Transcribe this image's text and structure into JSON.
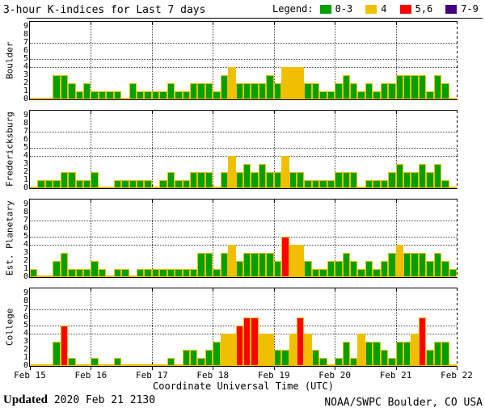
{
  "title": "3-hour K-indices for Last 7 days",
  "legend": {
    "label": "Legend:",
    "items": [
      {
        "label": "0-3",
        "color": "#00A000"
      },
      {
        "label": "4",
        "color": "#F0C000"
      },
      {
        "label": "5,6",
        "color": "#FF0000"
      },
      {
        "label": "7-9",
        "color": "#400080"
      }
    ]
  },
  "xlabel": "Coordinate Universal Time (UTC)",
  "footer": {
    "updated_label": "Updated",
    "updated_value": " 2020 Feb 21 2130",
    "source": "NOAA/SWPC Boulder, CO USA"
  },
  "chart_data": {
    "type": "bar",
    "title": "3-hour K-indices for Last 7 days",
    "ylim": [
      0,
      9
    ],
    "y_ticks": [
      0,
      1,
      2,
      3,
      4,
      5,
      6,
      7,
      8,
      9
    ],
    "hgridlines_at": [
      4,
      5,
      7
    ],
    "bars_per_day": 8,
    "days": 7,
    "x_tick_labels": [
      "Feb 15",
      "Feb 16",
      "Feb 17",
      "Feb 18",
      "Feb 19",
      "Feb 20",
      "Feb 21",
      "Feb 22"
    ],
    "color_rules": {
      "green_max": 3,
      "yellow_max": 4,
      "red_max": 6,
      "purple_max": 9
    },
    "colors": {
      "green": "#00A000",
      "yellow": "#F0C000",
      "red": "#FF0000",
      "purple": "#400080",
      "outline": "#F0C000"
    },
    "panels": [
      {
        "station": "Boulder",
        "values": [
          0,
          0,
          0,
          3,
          3,
          2,
          1,
          2,
          1,
          1,
          1,
          1,
          0,
          2,
          1,
          1,
          1,
          1,
          2,
          1,
          1,
          2,
          2,
          2,
          1,
          3,
          4,
          2,
          2,
          2,
          2,
          3,
          2,
          4,
          4,
          4,
          2,
          2,
          1,
          1,
          2,
          3,
          2,
          1,
          2,
          1,
          2,
          2,
          3,
          3,
          3,
          3,
          1,
          3,
          2,
          0
        ]
      },
      {
        "station": "Fredericksburg",
        "values": [
          0,
          1,
          1,
          1,
          2,
          2,
          1,
          1,
          2,
          0,
          0,
          1,
          1,
          1,
          1,
          1,
          0,
          1,
          2,
          1,
          1,
          2,
          2,
          2,
          0,
          2,
          4,
          2,
          3,
          2,
          3,
          2,
          2,
          4,
          2,
          2,
          1,
          1,
          1,
          1,
          2,
          2,
          2,
          0,
          1,
          1,
          1,
          2,
          3,
          2,
          2,
          3,
          2,
          3,
          1,
          0
        ]
      },
      {
        "station": "Est. Planetary",
        "values": [
          1,
          0,
          0,
          2,
          3,
          1,
          1,
          1,
          2,
          1,
          0,
          1,
          1,
          0,
          1,
          1,
          1,
          1,
          1,
          1,
          1,
          1,
          3,
          3,
          1,
          3,
          4,
          2,
          3,
          3,
          3,
          3,
          2,
          5,
          4,
          4,
          2,
          1,
          1,
          2,
          2,
          3,
          2,
          1,
          2,
          1,
          2,
          3,
          4,
          3,
          3,
          3,
          2,
          3,
          2,
          1
        ]
      },
      {
        "station": "College",
        "values": [
          0,
          0,
          0,
          3,
          5,
          1,
          0,
          0,
          1,
          0,
          0,
          1,
          0,
          0,
          0,
          0,
          0,
          0,
          1,
          0,
          2,
          2,
          1,
          2,
          3,
          4,
          4,
          5,
          6,
          6,
          4,
          4,
          2,
          2,
          4,
          6,
          4,
          2,
          1,
          0,
          1,
          3,
          1,
          4,
          3,
          3,
          2,
          1,
          3,
          3,
          4,
          6,
          2,
          3,
          3,
          0
        ]
      }
    ]
  }
}
